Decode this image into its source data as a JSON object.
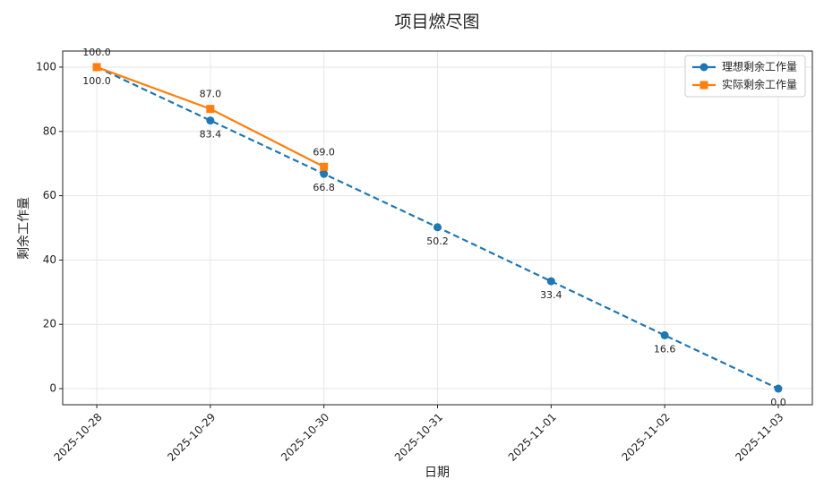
{
  "chart_data": {
    "type": "line",
    "title": "项目燃尽图",
    "x_label": "日期",
    "y_label": "剩余工作量",
    "categories": [
      "2025-10-28",
      "2025-10-29",
      "2025-10-30",
      "2025-10-31",
      "2025-11-01",
      "2025-11-02",
      "2025-11-03"
    ],
    "series": [
      {
        "name": "理想剩余工作量",
        "color": "#1f77b4",
        "dash": true,
        "marker": "circle",
        "values": [
          100,
          83.4,
          66.8,
          50.2,
          33.4,
          16.6,
          0
        ],
        "value_labels": [
          "100.0",
          "83.4",
          "66.8",
          "50.2",
          "33.4",
          "16.6",
          "0.0"
        ]
      },
      {
        "name": "实际剩余工作量",
        "color": "#ff7f0e",
        "dash": false,
        "marker": "square",
        "values": [
          100,
          87,
          69,
          null,
          null,
          null,
          null
        ],
        "value_labels": [
          "100.0",
          "87.0",
          "69.0",
          null,
          null,
          null,
          null
        ]
      }
    ],
    "ylim": [
      -5,
      105
    ],
    "yticks": [
      0,
      20,
      40,
      60,
      80,
      100
    ],
    "grid": true,
    "legend": "upper right"
  }
}
